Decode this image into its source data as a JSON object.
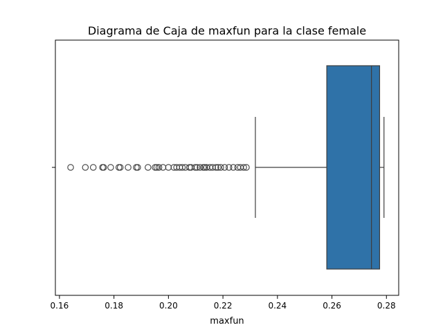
{
  "chart_data": {
    "type": "box",
    "title": "Diagrama de Caja de maxfun para la clase female",
    "xlabel": "maxfun",
    "ylabel": "",
    "xlim": [
      0.1585,
      0.2845
    ],
    "xticks": [
      0.16,
      0.18,
      0.2,
      0.22,
      0.24,
      0.26,
      0.28
    ],
    "xtick_labels": [
      "0.16",
      "0.18",
      "0.20",
      "0.22",
      "0.24",
      "0.26",
      "0.28"
    ],
    "ytick_labels": [
      ""
    ],
    "box": {
      "whisker_low": 0.2319,
      "q1": 0.2581,
      "median": 0.2745,
      "q3": 0.2775,
      "whisker_high": 0.2791,
      "color": "#2f72a8"
    },
    "outliers": [
      0.1641,
      0.1695,
      0.1724,
      0.1758,
      0.1762,
      0.1788,
      0.1818,
      0.1823,
      0.1852,
      0.1882,
      0.1887,
      0.1925,
      0.1951,
      0.1957,
      0.1965,
      0.198,
      0.2,
      0.202,
      0.203,
      0.2041,
      0.2051,
      0.2062,
      0.2077,
      0.2083,
      0.2098,
      0.2105,
      0.2116,
      0.2128,
      0.2133,
      0.214,
      0.2152,
      0.2162,
      0.2174,
      0.2182,
      0.2192,
      0.2206,
      0.2222,
      0.2238,
      0.2254,
      0.2264,
      0.2276,
      0.2286
    ]
  }
}
